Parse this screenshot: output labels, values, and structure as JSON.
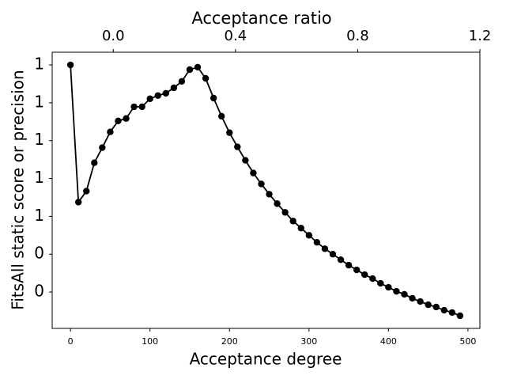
{
  "chart_data": {
    "type": "line",
    "xlabel": "Acceptance degree",
    "ylabel": "FitsAll static score or precision",
    "x2label": "Acceptance ratio",
    "x": [
      0,
      10,
      20,
      30,
      40,
      50,
      60,
      70,
      80,
      90,
      100,
      110,
      120,
      130,
      140,
      150,
      160,
      170,
      180,
      190,
      200,
      210,
      220,
      230,
      240,
      250,
      260,
      270,
      280,
      290,
      300,
      310,
      320,
      330,
      340,
      350,
      360,
      370,
      380,
      390,
      400,
      410,
      420,
      430,
      440,
      450,
      460,
      470,
      480,
      490
    ],
    "series": [
      {
        "color": "#000000",
        "values": [
          1.4,
          0.675,
          0.733,
          0.883,
          0.963,
          1.046,
          1.104,
          1.117,
          1.179,
          1.179,
          1.221,
          1.238,
          1.25,
          1.279,
          1.313,
          1.375,
          1.388,
          1.329,
          1.225,
          1.129,
          1.042,
          0.967,
          0.896,
          0.829,
          0.771,
          0.717,
          0.667,
          0.621,
          0.575,
          0.538,
          0.5,
          0.463,
          0.429,
          0.4,
          0.371,
          0.342,
          0.317,
          0.292,
          0.271,
          0.246,
          0.225,
          0.204,
          0.188,
          0.167,
          0.15,
          0.133,
          0.121,
          0.104,
          0.092,
          0.075
        ]
      }
    ],
    "xlim": [
      -23,
      515
    ],
    "xticks": [
      0,
      100,
      200,
      300,
      400,
      500
    ],
    "ylim": [
      0.008,
      1.467
    ],
    "yticks": [
      {
        "value": 1.4,
        "label": "1"
      },
      {
        "value": 1.2,
        "label": "1"
      },
      {
        "value": 1.0,
        "label": "1"
      },
      {
        "value": 0.8,
        "label": "1"
      },
      {
        "value": 0.6,
        "label": "1"
      },
      {
        "value": 0.4,
        "label": "0"
      },
      {
        "value": 0.2,
        "label": "0"
      }
    ],
    "x2lim": [
      -0.2,
      1.2
    ],
    "x2ticks": [
      {
        "value": 0.0,
        "label": "0.0"
      },
      0.4,
      0.8,
      1.2
    ]
  }
}
